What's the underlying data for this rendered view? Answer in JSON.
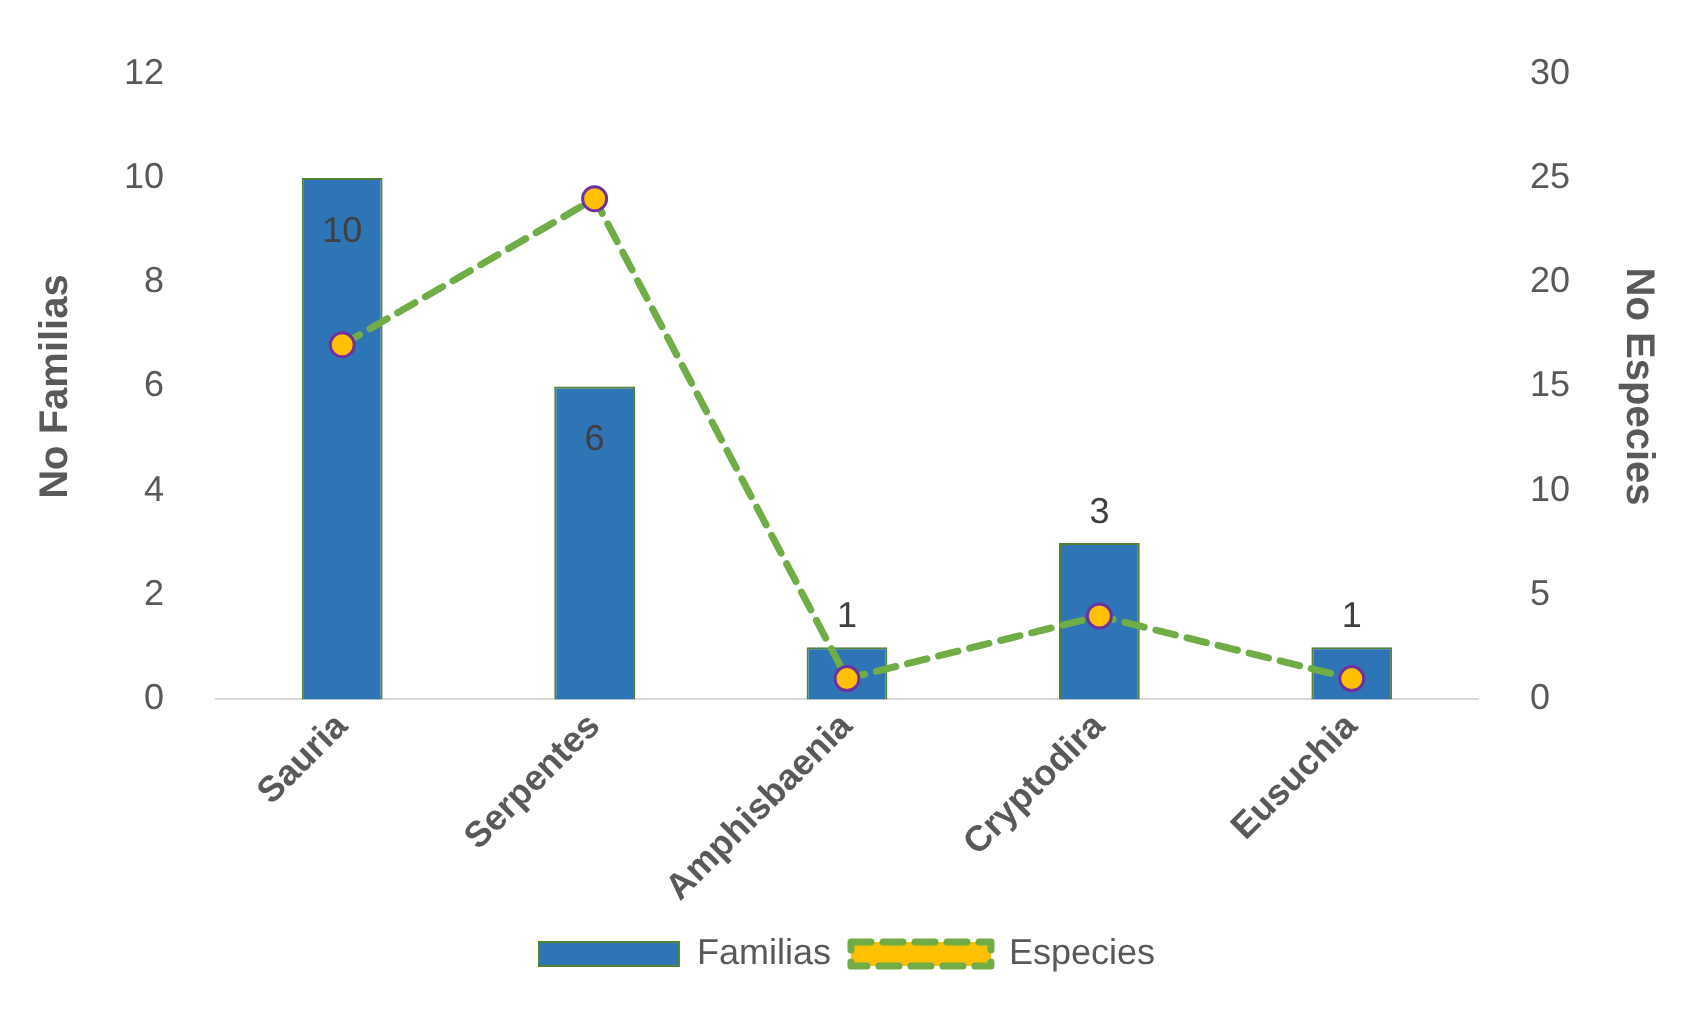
{
  "chart_data": {
    "type": "bar",
    "categories": [
      "Sauria",
      "Serpentes",
      "Amphisbaenia",
      "Cryptodira",
      "Eusuchia"
    ],
    "ylabel": "No Familias",
    "y2label": "No Especies",
    "ylim": [
      0,
      12
    ],
    "yticks": [
      0,
      2,
      4,
      6,
      8,
      10,
      12
    ],
    "y2lim": [
      0,
      30
    ],
    "y2ticks": [
      0,
      5,
      10,
      15,
      20,
      25,
      30
    ],
    "grid": false,
    "legend": "bottom",
    "series": [
      {
        "name": "Familias",
        "color": "#2e75b6",
        "values": [
          10,
          6,
          1,
          3,
          1
        ],
        "value_labels": [
          "10",
          "6",
          "1",
          "3",
          "1"
        ]
      },
      {
        "name": "Especies",
        "type": "line",
        "axis": "y2",
        "color": "#70ad47",
        "values": [
          17,
          24,
          1,
          4,
          1
        ],
        "marker": "circle",
        "line_style": "dashed"
      }
    ]
  }
}
